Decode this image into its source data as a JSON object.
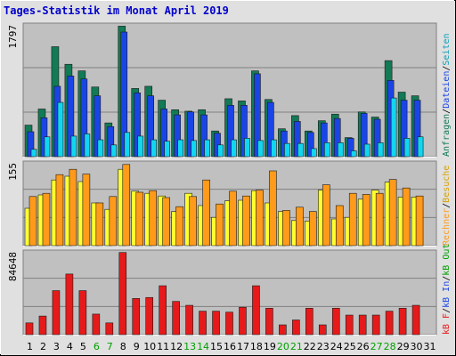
{
  "title": "Tages-Statistik im Monat April 2019",
  "colors": {
    "frame_bg": "#e0e0e0",
    "plot_bg": "#c0c0c0",
    "title": "#0000cc",
    "anfragen": "#127a55",
    "dateien": "#1a45e6",
    "seiten": "#12d6f0",
    "besuche": "#ff9a1a",
    "rechner": "#ffff30",
    "kb_f": "#e61a1a",
    "weekend": "#00a000",
    "weekday": "#000000",
    "gridline": "#808080"
  },
  "chart_data": [
    {
      "type": "bar",
      "panel": "top",
      "ymax_label": "1797",
      "ylim": [
        0,
        1797
      ],
      "categories": [
        "1",
        "2",
        "3",
        "4",
        "5",
        "6",
        "7",
        "8",
        "9",
        "10",
        "11",
        "12",
        "13",
        "14",
        "15",
        "16",
        "17",
        "18",
        "19",
        "20",
        "21",
        "22",
        "23",
        "24",
        "25",
        "26",
        "27",
        "28",
        "29",
        "30",
        "31"
      ],
      "weekend_days": [
        6,
        7,
        13,
        14,
        20,
        21,
        27,
        28
      ],
      "series": [
        {
          "name": "Anfragen",
          "values": [
            430,
            650,
            1500,
            1260,
            1170,
            950,
            460,
            1780,
            930,
            960,
            770,
            640,
            620,
            640,
            350,
            790,
            760,
            1170,
            780,
            380,
            560,
            350,
            490,
            580,
            260,
            610,
            540,
            1310,
            880,
            830,
            0
          ]
        },
        {
          "name": "Dateien",
          "values": [
            340,
            530,
            960,
            1100,
            1060,
            830,
            410,
            1700,
            870,
            830,
            650,
            570,
            610,
            570,
            320,
            700,
            700,
            1130,
            740,
            350,
            480,
            330,
            460,
            520,
            250,
            590,
            510,
            1040,
            770,
            770,
            0
          ]
        },
        {
          "name": "Seiten",
          "values": [
            100,
            270,
            740,
            280,
            310,
            230,
            160,
            330,
            280,
            230,
            210,
            230,
            220,
            230,
            160,
            230,
            250,
            220,
            230,
            180,
            180,
            110,
            190,
            190,
            80,
            170,
            190,
            800,
            250,
            270,
            0
          ]
        }
      ],
      "legend_labels": [
        "Anfragen",
        "Dateien",
        "Seiten"
      ]
    },
    {
      "type": "bar",
      "panel": "middle",
      "ymax_label": "155",
      "ylim": [
        0,
        155
      ],
      "series": [
        {
          "name": "Rechner",
          "values": [
            70,
            95,
            123,
            130,
            120,
            80,
            68,
            143,
            102,
            98,
            93,
            64,
            98,
            75,
            53,
            84,
            85,
            103,
            80,
            64,
            47,
            46,
            104,
            50,
            53,
            87,
            104,
            119,
            91,
            91,
            0
          ]
        },
        {
          "name": "Besuche",
          "values": [
            92,
            98,
            133,
            143,
            134,
            80,
            92,
            152,
            100,
            103,
            90,
            73,
            92,
            123,
            78,
            102,
            93,
            104,
            140,
            66,
            72,
            64,
            114,
            75,
            98,
            96,
            98,
            124,
            108,
            93,
            0
          ]
        }
      ],
      "legend_labels": [
        "Rechner",
        "Besuche"
      ]
    },
    {
      "type": "bar",
      "panel": "bottom",
      "ymax_label": "84648",
      "ylim": [
        0,
        84648
      ],
      "series": [
        {
          "name": "kB F",
          "values": [
            12000,
            19000,
            45000,
            62000,
            45000,
            21000,
            12000,
            84000,
            37000,
            38000,
            50000,
            34000,
            30000,
            24000,
            24000,
            23000,
            28000,
            50000,
            27000,
            10000,
            15000,
            27000,
            10000,
            27000,
            20000,
            20000,
            20000,
            24000,
            27000,
            30000,
            0
          ]
        }
      ],
      "legend_labels": [
        "kB F",
        "kB In",
        "kB Out"
      ]
    }
  ]
}
